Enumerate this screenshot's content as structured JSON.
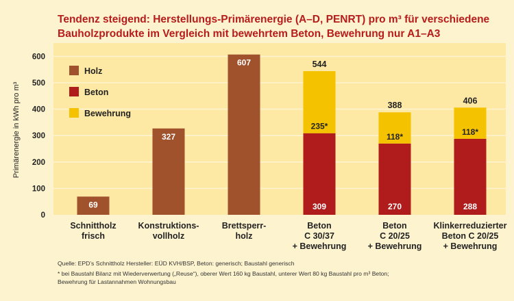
{
  "title_lines": [
    "Tendenz steigend: Herstellungs-Primärenergie (A–D, PENRT) pro m³ für verschiedene",
    "Bauholzprodukte im Vergleich mit bewehrtem Beton, Bewehrung nur A1–A3"
  ],
  "colors": {
    "background": "#fdf3cf",
    "plot_background": "#fde8a4",
    "gridline": "#fdf3cf",
    "holz": "#a0522d",
    "beton": "#b01c1c",
    "bewehrung": "#f5c200",
    "title": "#b71c1c"
  },
  "chart_data": {
    "type": "bar",
    "stacked": true,
    "ylabel": "Primärenergie in kWh pro m³",
    "ylim": [
      0,
      620
    ],
    "yticks": [
      0,
      100,
      200,
      300,
      400,
      500,
      600
    ],
    "legend": [
      {
        "key": "holz",
        "label": "Holz"
      },
      {
        "key": "beton",
        "label": "Beton"
      },
      {
        "key": "bewehrung",
        "label": "Bewehrung"
      }
    ],
    "categories": [
      {
        "label": [
          "Schnittholz",
          "frisch"
        ],
        "segments": [
          {
            "series": "holz",
            "value": 69,
            "label": "69"
          }
        ]
      },
      {
        "label": [
          "Konstruktions-",
          "vollholz"
        ],
        "segments": [
          {
            "series": "holz",
            "value": 327,
            "label": "327"
          }
        ]
      },
      {
        "label": [
          "Brettsperr-",
          "holz"
        ],
        "segments": [
          {
            "series": "holz",
            "value": 607,
            "label": "607"
          }
        ]
      },
      {
        "label": [
          "Beton",
          "C 30/37",
          "+ Bewehrung"
        ],
        "segments": [
          {
            "series": "beton",
            "value": 309,
            "label": "309"
          },
          {
            "series": "bewehrung",
            "value": 235,
            "label": "235*"
          }
        ],
        "total": "544"
      },
      {
        "label": [
          "Beton",
          "C 20/25",
          "+ Bewehrung"
        ],
        "segments": [
          {
            "series": "beton",
            "value": 270,
            "label": "270"
          },
          {
            "series": "bewehrung",
            "value": 118,
            "label": "118*"
          }
        ],
        "total": "388"
      },
      {
        "label": [
          "Klinkerreduzierter",
          "Beton C 20/25",
          "+ Bewehrung"
        ],
        "segments": [
          {
            "series": "beton",
            "value": 288,
            "label": "288"
          },
          {
            "series": "bewehrung",
            "value": 118,
            "label": "118*"
          }
        ],
        "total": "406"
      }
    ]
  },
  "footer": {
    "source": "Quelle: EPD’s Schnittholz Hersteller: EÜD KVH/BSP, Beton: generisch; Baustahl generisch",
    "note_line1": "* bei Baustahl Bilanz mit Wiederverwertung („Reuse“), oberer Wert 160 kg Baustahl, unterer Wert 80 kg Baustahl pro m³ Beton;",
    "note_line2": "Bewehrung für Lastannahmen Wohnungsbau"
  }
}
